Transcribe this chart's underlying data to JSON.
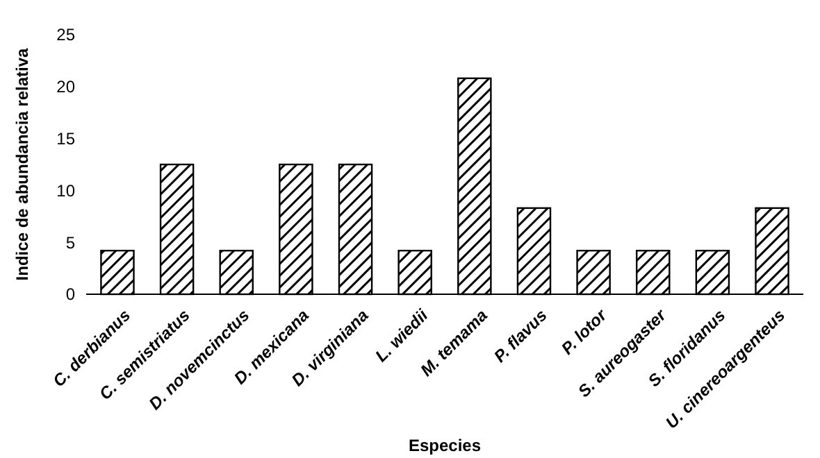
{
  "chart_data": {
    "type": "bar",
    "xlabel": "Especies",
    "ylabel": "Indice de abundancia relativa",
    "categories": [
      "C. derbianus",
      "C. semistriatus",
      "D. novemcinctus",
      "D. mexicana",
      "D. virginiana",
      "L. wiedii",
      "M. temama",
      "P. flavus",
      "P. lotor",
      "S. aureogaster",
      "S. floridanus",
      "U. cinereoargenteus"
    ],
    "values": [
      4.2,
      12.5,
      4.2,
      12.5,
      12.5,
      4.2,
      20.8,
      8.3,
      4.2,
      4.2,
      4.2,
      8.3
    ],
    "color": "#000000",
    "ylim": [
      0,
      25
    ],
    "yticks": [
      0,
      5,
      10,
      15,
      20,
      25
    ],
    "grid": false
  }
}
